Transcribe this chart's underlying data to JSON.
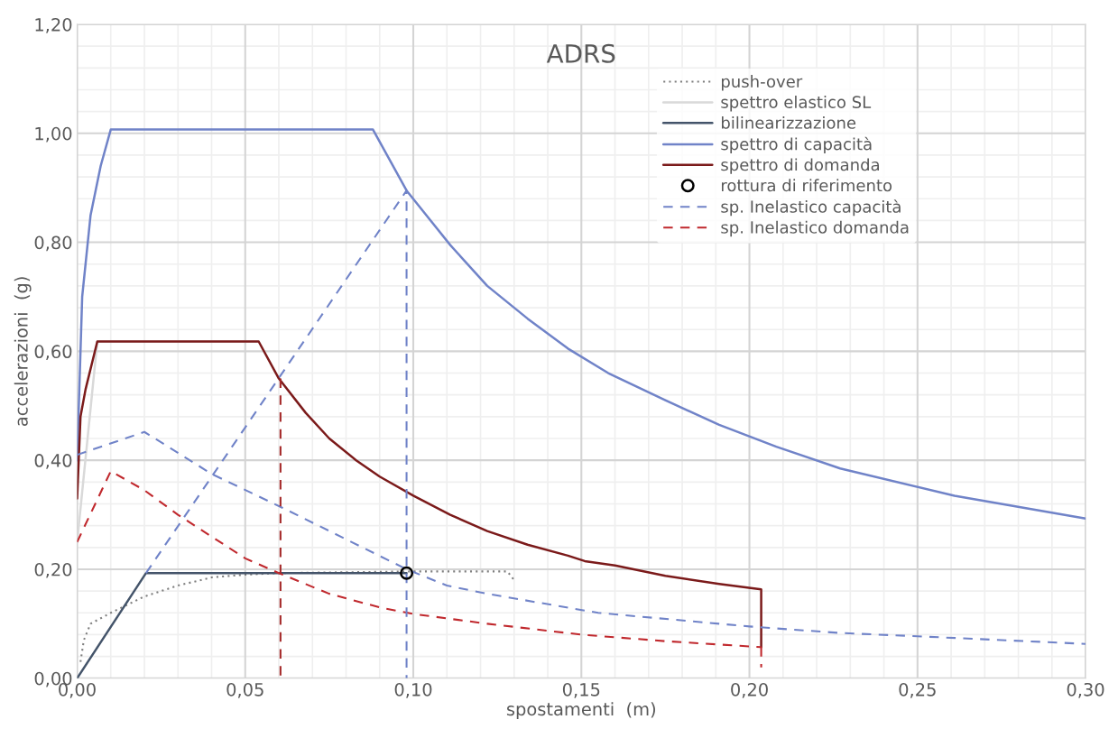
{
  "chart_data": {
    "type": "line",
    "title": "ADRS",
    "xlabel": "spostamenti  (m)",
    "ylabel": "accelerazioni  (g)",
    "xlim": [
      0,
      0.3
    ],
    "ylim": [
      0,
      1.2
    ],
    "xticks": [
      {
        "value": 0,
        "label": "0,00"
      },
      {
        "value": 0.05,
        "label": "0,05"
      },
      {
        "value": 0.1,
        "label": "0,10"
      },
      {
        "value": 0.15,
        "label": "0,15"
      },
      {
        "value": 0.2,
        "label": "0,20"
      },
      {
        "value": 0.25,
        "label": "0,25"
      },
      {
        "value": 0.3,
        "label": "0,30"
      }
    ],
    "yticks": [
      {
        "value": 0,
        "label": "0,00"
      },
      {
        "value": 0.2,
        "label": "0,20"
      },
      {
        "value": 0.4,
        "label": "0,40"
      },
      {
        "value": 0.6,
        "label": "0,60"
      },
      {
        "value": 0.8,
        "label": "0,80"
      },
      {
        "value": 1.0,
        "label": "1,00"
      },
      {
        "value": 1.2,
        "label": "1,20"
      }
    ],
    "grid": true,
    "legend": "top right",
    "series": [
      {
        "name": "push-over",
        "color": "#7f7f7f",
        "line_style": "dotted",
        "x": [
          0.001,
          0.002,
          0.004,
          0.01,
          0.02,
          0.03,
          0.04,
          0.05,
          0.06,
          0.1,
          0.128,
          0.13
        ],
        "values": [
          0.03,
          0.07,
          0.1,
          0.12,
          0.15,
          0.17,
          0.185,
          0.19,
          0.193,
          0.196,
          0.196,
          0.18
        ]
      },
      {
        "name": "spettro elastico SL",
        "color": "#d9d9d9",
        "line_style": "solid",
        "x": [
          0,
          0.006,
          0.054
        ],
        "values": [
          0.25,
          0.618,
          0.618
        ]
      },
      {
        "name": "bilinearizzazione",
        "color": "#44546a",
        "line_style": "solid",
        "x": [
          0,
          0.0205,
          0.098
        ],
        "values": [
          0,
          0.193,
          0.193
        ]
      },
      {
        "name": "spettro di capacità",
        "color": "#7083c8",
        "line_style": "solid",
        "x": [
          0,
          0.0015,
          0.004,
          0.007,
          0.01,
          0.088,
          0.098,
          0.111,
          0.122,
          0.134,
          0.146,
          0.158,
          0.175,
          0.191,
          0.208,
          0.227,
          0.261,
          0.3
        ],
        "values": [
          0.4,
          0.7,
          0.85,
          0.94,
          1.007,
          1.007,
          0.895,
          0.795,
          0.72,
          0.66,
          0.605,
          0.56,
          0.51,
          0.465,
          0.425,
          0.385,
          0.335,
          0.293
        ]
      },
      {
        "name": "spettro di domanda",
        "color": "#7b1a1a",
        "line_style": "solid",
        "x": [
          0,
          0.001,
          0.0025,
          0.006,
          0.054,
          0.06,
          0.068,
          0.075,
          0.083,
          0.09,
          0.1,
          0.111,
          0.122,
          0.134,
          0.146,
          0.151,
          0.16,
          0.175,
          0.191,
          0.2035,
          0.2035
        ],
        "values": [
          0.33,
          0.48,
          0.53,
          0.618,
          0.618,
          0.55,
          0.487,
          0.44,
          0.4,
          0.37,
          0.335,
          0.3,
          0.27,
          0.245,
          0.225,
          0.215,
          0.207,
          0.188,
          0.173,
          0.163,
          0.057
        ]
      },
      {
        "name": "rottura di riferimento",
        "type": "scatter",
        "marker": "circle",
        "color": "#000000",
        "x": [
          0.098
        ],
        "values": [
          0.193
        ]
      },
      {
        "name": "sp. Inelastico capacità",
        "color": "#7083c8",
        "line_style": "dashed",
        "x": [
          0,
          0.02,
          0.04,
          0.061,
          0.08,
          0.098,
          0.11,
          0.122,
          0.155,
          0.2,
          0.227,
          0.25,
          0.3
        ],
        "values": [
          0.41,
          0.452,
          0.375,
          0.313,
          0.255,
          0.2,
          0.17,
          0.155,
          0.12,
          0.095,
          0.083,
          0.077,
          0.063
        ]
      },
      {
        "name": "sp. Inelastico domanda",
        "color": "#c0282d",
        "line_style": "dashed",
        "x": [
          0,
          0.01,
          0.02,
          0.03,
          0.04,
          0.05,
          0.06,
          0.075,
          0.09,
          0.1,
          0.122,
          0.15,
          0.175,
          0.2035
        ],
        "values": [
          0.25,
          0.38,
          0.345,
          0.3,
          0.26,
          0.22,
          0.193,
          0.155,
          0.13,
          0.118,
          0.1,
          0.08,
          0.068,
          0.057
        ]
      },
      {
        "color": "#7083c8",
        "line_style": "dashed",
        "x": [
          0.0205,
          0.098,
          0.098
        ],
        "values": [
          0.193,
          0.895,
          0
        ]
      },
      {
        "color": "#a52a2a",
        "line_style": "dashed",
        "x": [
          0.0605,
          0.0605
        ],
        "values": [
          0.55,
          0
        ]
      },
      {
        "color": "#c0282d",
        "line_style": "dashed",
        "x": [
          0.2035,
          0.2035
        ],
        "values": [
          0.057,
          0.02
        ]
      }
    ]
  }
}
